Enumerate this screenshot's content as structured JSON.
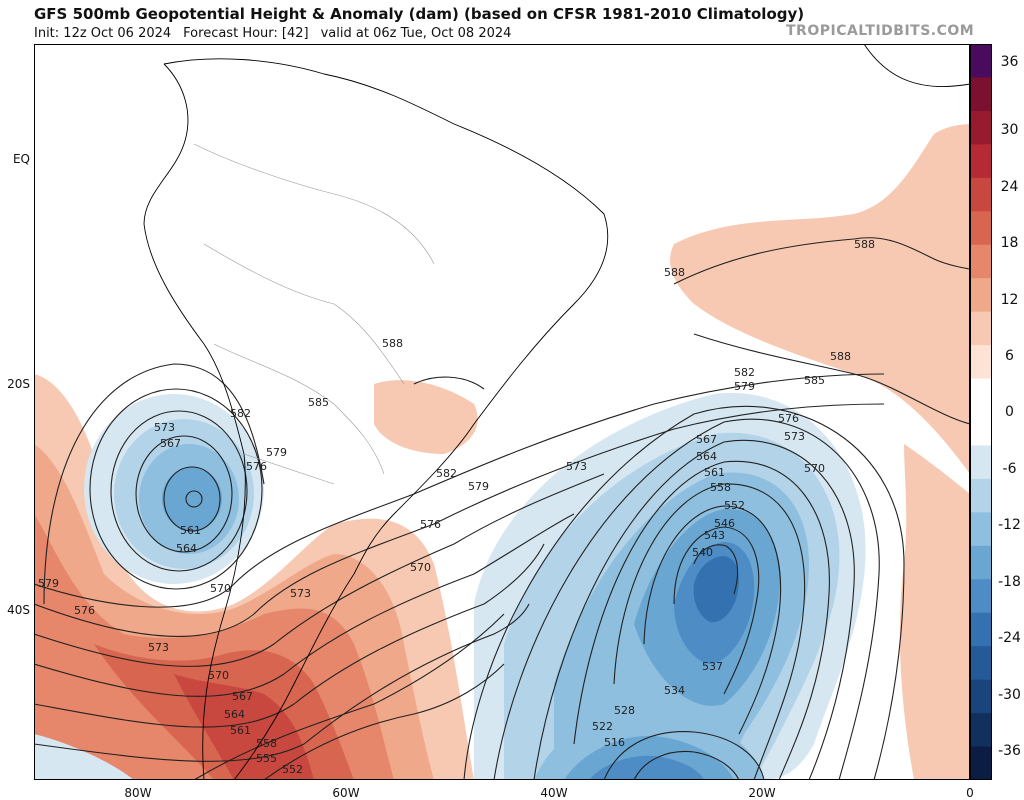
{
  "header": {
    "title": "GFS 500mb Geopotential Height & Anomaly (dam) (based on CFSR 1981-2010 Climatology)",
    "init": "Init: 12z Oct 06 2024",
    "forecast_hour": "Forecast Hour: [42]",
    "valid": "valid at 06z Tue, Oct 08 2024",
    "brand": "TROPICALTIDBITS.COM"
  },
  "axes": {
    "lat_labels": [
      "EQ",
      "20S",
      "40S"
    ],
    "lon_labels": [
      "80W",
      "60W",
      "40W",
      "20W",
      "0"
    ]
  },
  "colorbar": {
    "ticks": [
      "36",
      "30",
      "24",
      "18",
      "12",
      "6",
      "0",
      "-6",
      "-12",
      "-18",
      "-24",
      "-30",
      "-36"
    ],
    "colors": [
      "#4a0a5e",
      "#7b1030",
      "#981a2e",
      "#b52a35",
      "#c8473f",
      "#d8654f",
      "#e6866a",
      "#f0a88a",
      "#f7c9b2",
      "#fde3d6",
      "#ffffff",
      "#ffffff",
      "#d6e7f2",
      "#b3d3e8",
      "#8ebfdf",
      "#6aa6d2",
      "#4d8cc4",
      "#3471b0",
      "#245a98",
      "#1a447c",
      "#12305e",
      "#0b1d42"
    ]
  },
  "contour_labels": [
    "588",
    "588",
    "588",
    "585",
    "582",
    "579",
    "576",
    "573",
    "570",
    "567",
    "564",
    "561",
    "558",
    "552",
    "546",
    "543",
    "540",
    "537",
    "534",
    "528",
    "522",
    "516",
    "573",
    "567",
    "561",
    "564",
    "582",
    "576",
    "579",
    "588",
    "585",
    "582",
    "579",
    "576",
    "573",
    "570",
    "570",
    "573",
    "579",
    "576",
    "573",
    "570",
    "567",
    "564",
    "561",
    "558",
    "555",
    "552"
  ]
}
